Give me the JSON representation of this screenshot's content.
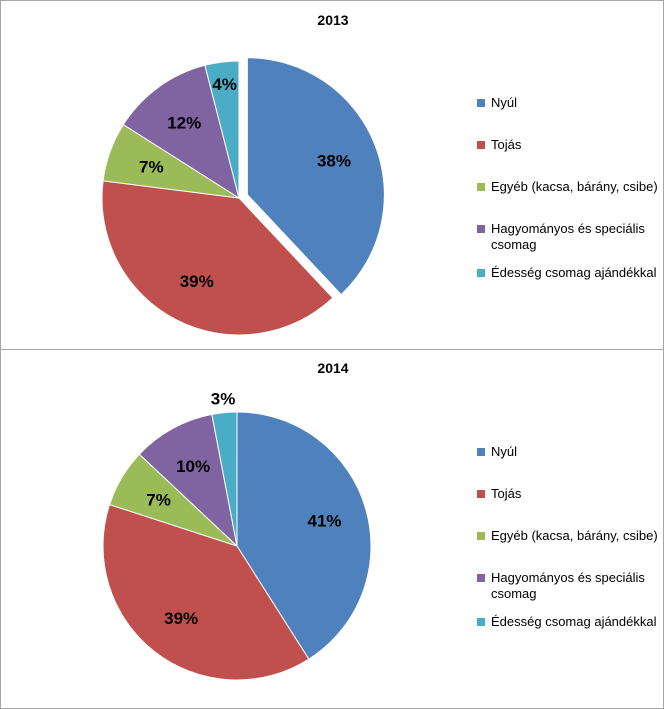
{
  "chart_data": [
    {
      "type": "pie",
      "title": "2013",
      "categories": [
        "Nyúl",
        "Tojás",
        "Egyéb (kacsa, bárány, csibe)",
        "Hagyományos és speciális csomag",
        "Édesség csomag ajándékkal"
      ],
      "values": [
        38,
        39,
        7,
        12,
        4
      ],
      "labels": [
        "38%",
        "39%",
        "7%",
        "12%",
        "4%"
      ],
      "colors": [
        "#4f81bd",
        "#c0504d",
        "#9bbb59",
        "#8064a2",
        "#4bacc6"
      ],
      "exploded_slice": 0,
      "legend_position": "right"
    },
    {
      "type": "pie",
      "title": "2014",
      "categories": [
        "Nyúl",
        "Tojás",
        "Egyéb (kacsa, bárány, csibe)",
        "Hagyományos és speciális csomag",
        "Édesség csomag ajándékkal"
      ],
      "values": [
        41,
        39,
        7,
        10,
        3
      ],
      "labels": [
        "41%",
        "39%",
        "7%",
        "10%",
        "3%"
      ],
      "colors": [
        "#4f81bd",
        "#c0504d",
        "#9bbb59",
        "#8064a2",
        "#4bacc6"
      ],
      "exploded_slice": null,
      "legend_position": "right"
    }
  ]
}
